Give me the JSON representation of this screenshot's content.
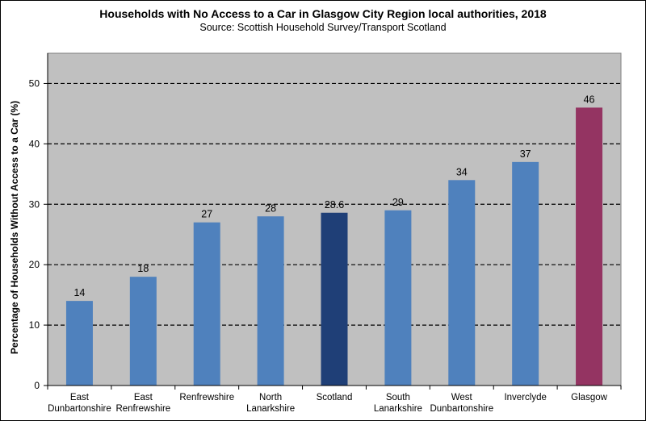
{
  "chart_data": {
    "type": "bar",
    "title": "Households with No Access to a Car in Glasgow City Region local authorities, 2018",
    "subtitle": "Source:  Scottish Household  Survey/Transport  Scotland",
    "xlabel": "",
    "ylabel": "Percentage of Households Without Access to a Car (%)",
    "ylim": [
      0,
      55
    ],
    "yticks": [
      0,
      10,
      20,
      30,
      40,
      50
    ],
    "grid": true,
    "categories": [
      [
        "East",
        "Dunbartonshire"
      ],
      [
        "East",
        "Renfrewshire"
      ],
      [
        "Renfrewshire"
      ],
      [
        "North",
        "Lanarkshire"
      ],
      [
        "Scotland"
      ],
      [
        "South",
        "Lanarkshire"
      ],
      [
        "West",
        "Dunbartonshire"
      ],
      [
        "Inverclyde"
      ],
      [
        "Glasgow"
      ]
    ],
    "values": [
      14,
      18,
      27,
      28,
      28.6,
      29,
      34,
      37,
      46
    ],
    "value_labels": [
      "14",
      "18",
      "27",
      "28",
      "28.6",
      "29",
      "34",
      "37",
      "46"
    ],
    "bar_colors": [
      "#4f81bd",
      "#4f81bd",
      "#4f81bd",
      "#4f81bd",
      "#1f3f77",
      "#4f81bd",
      "#4f81bd",
      "#4f81bd",
      "#943462"
    ],
    "plot_background": "#c0c0c0"
  }
}
